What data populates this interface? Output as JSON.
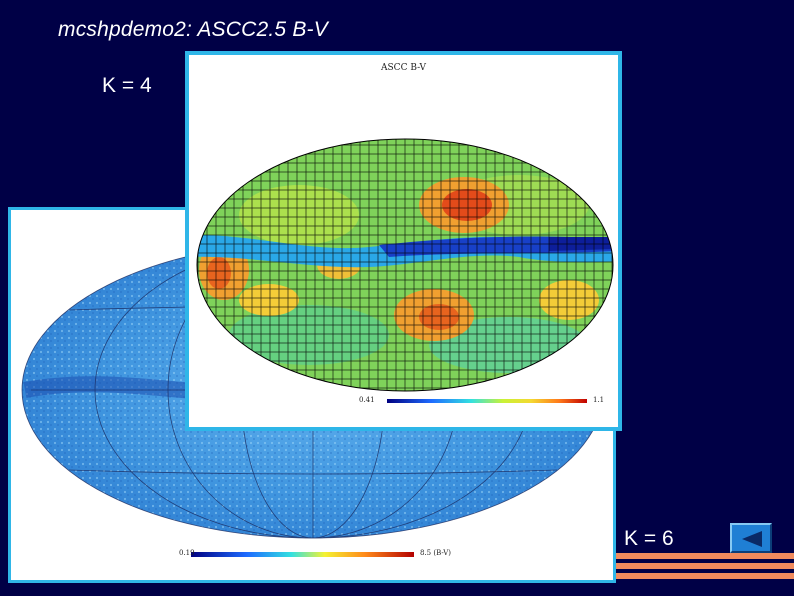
{
  "slide": {
    "title": "mcshpdemo2: ASCC2.5 B-V",
    "k4_label": "K = 4",
    "k6_label": "K = 6"
  },
  "front_map": {
    "title": "ASCC B-V",
    "colorbar_min": "0.41",
    "colorbar_max": "1.1"
  },
  "back_map": {
    "colorbar_min": "0.19",
    "colorbar_max": "8.5 (B-V)"
  },
  "nav": {
    "back_button_icon": "triangle-left-icon"
  },
  "colors": {
    "background": "#000046",
    "panel_border": "#2fb6e8",
    "stripe": "#f08a5d",
    "button": "#1f7fd4"
  }
}
